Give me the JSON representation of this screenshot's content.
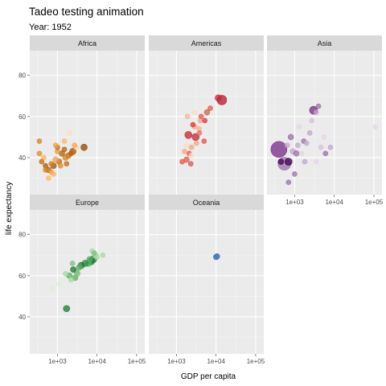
{
  "chart_data": {
    "type": "scatter",
    "title": "Tadeo testing animation",
    "subtitle": "Year: 1952",
    "xlabel": "GDP per capita",
    "ylabel": "life expectancy",
    "xscale": "log10",
    "xlim": [
      200,
      160000
    ],
    "ylim": [
      22,
      92
    ],
    "x_ticks": [
      1000,
      10000,
      100000
    ],
    "x_tick_labels": [
      "1e+03",
      "1e+04",
      "1e+05"
    ],
    "y_ticks": [
      40,
      60,
      80
    ],
    "y_tick_labels": [
      "40",
      "60",
      "80"
    ],
    "grid": true,
    "legend": "none",
    "facets": [
      {
        "name": "Africa",
        "points": [
          {
            "x": 2450,
            "y": 43,
            "s": 4,
            "c": "#a35400"
          },
          {
            "x": 1900,
            "y": 41,
            "s": 3.5,
            "c": "#c46a10"
          },
          {
            "x": 1600,
            "y": 40,
            "s": 3.5,
            "c": "#d97f1e"
          },
          {
            "x": 1300,
            "y": 42,
            "s": 3.5,
            "c": "#b8600a"
          },
          {
            "x": 1100,
            "y": 38,
            "s": 3.5,
            "c": "#c46a10"
          },
          {
            "x": 1000,
            "y": 43,
            "s": 3,
            "c": "#e8953a"
          },
          {
            "x": 900,
            "y": 39,
            "s": 3.5,
            "c": "#f0a04b"
          },
          {
            "x": 800,
            "y": 36,
            "s": 3.5,
            "c": "#9e5205"
          },
          {
            "x": 700,
            "y": 37,
            "s": 3,
            "c": "#d47a19"
          },
          {
            "x": 600,
            "y": 34,
            "s": 3.5,
            "c": "#b55e08"
          },
          {
            "x": 500,
            "y": 36,
            "s": 3,
            "c": "#a85800"
          },
          {
            "x": 450,
            "y": 40,
            "s": 3,
            "c": "#f5b260"
          },
          {
            "x": 400,
            "y": 38,
            "s": 3,
            "c": "#c46a10"
          },
          {
            "x": 350,
            "y": 48,
            "s": 3,
            "c": "#d97f1e"
          },
          {
            "x": 3000,
            "y": 45,
            "s": 3,
            "c": "#fdd49e"
          },
          {
            "x": 2000,
            "y": 52,
            "s": 3,
            "c": "#fee0b6"
          },
          {
            "x": 1500,
            "y": 48,
            "s": 3,
            "c": "#fdb863"
          },
          {
            "x": 4700,
            "y": 45,
            "s": 4,
            "c": "#8c4500"
          },
          {
            "x": 2700,
            "y": 46,
            "s": 3,
            "c": "#f2a65a"
          },
          {
            "x": 1200,
            "y": 36,
            "s": 3,
            "c": "#e08a2a"
          },
          {
            "x": 700,
            "y": 33,
            "s": 3,
            "c": "#f0a04b"
          },
          {
            "x": 350,
            "y": 42,
            "s": 3,
            "c": "#e08a2a"
          },
          {
            "x": 1000,
            "y": 45,
            "s": 3,
            "c": "#c46a10"
          },
          {
            "x": 800,
            "y": 32,
            "s": 3,
            "c": "#f5b260"
          },
          {
            "x": 1500,
            "y": 44,
            "s": 3,
            "c": "#b8600a"
          },
          {
            "x": 600,
            "y": 30,
            "s": 3,
            "c": "#fdb863"
          },
          {
            "x": 500,
            "y": 34,
            "s": 3,
            "c": "#d97f1e"
          },
          {
            "x": 1700,
            "y": 37,
            "s": 3,
            "c": "#c46a10"
          },
          {
            "x": 2200,
            "y": 42,
            "s": 3,
            "c": "#b8600a"
          },
          {
            "x": 900,
            "y": 46,
            "s": 3,
            "c": "#f0a04b"
          }
        ]
      },
      {
        "name": "Americas",
        "points": [
          {
            "x": 13990,
            "y": 68,
            "s": 6,
            "c": "#b2182b"
          },
          {
            "x": 11367,
            "y": 69,
            "s": 4,
            "c": "#c62a3a"
          },
          {
            "x": 5911,
            "y": 62,
            "s": 3.5,
            "c": "#d6604d"
          },
          {
            "x": 4000,
            "y": 58,
            "s": 3,
            "c": "#f4a582"
          },
          {
            "x": 2900,
            "y": 55,
            "s": 3,
            "c": "#f4a582"
          },
          {
            "x": 7144,
            "y": 64,
            "s": 3,
            "c": "#d6604d"
          },
          {
            "x": 3750,
            "y": 54,
            "s": 3,
            "c": "#f6b393"
          },
          {
            "x": 3048,
            "y": 50,
            "s": 4.5,
            "c": "#c0272d"
          },
          {
            "x": 2000,
            "y": 51,
            "s": 4.5,
            "c": "#c0272d"
          },
          {
            "x": 5000,
            "y": 48,
            "s": 3,
            "c": "#e35252"
          },
          {
            "x": 2400,
            "y": 45,
            "s": 3,
            "c": "#f4a582"
          },
          {
            "x": 2100,
            "y": 42,
            "s": 3,
            "c": "#e85a4a"
          },
          {
            "x": 1600,
            "y": 43,
            "s": 3,
            "c": "#f4a582"
          },
          {
            "x": 1400,
            "y": 38,
            "s": 3,
            "c": "#e35a3a"
          },
          {
            "x": 1800,
            "y": 39,
            "s": 3.5,
            "c": "#d6604d"
          },
          {
            "x": 2400,
            "y": 41,
            "s": 3,
            "c": "#fddbc7"
          },
          {
            "x": 3800,
            "y": 52,
            "s": 3,
            "c": "#e86c5a"
          },
          {
            "x": 3200,
            "y": 47,
            "s": 3,
            "c": "#f4a582"
          },
          {
            "x": 2600,
            "y": 56,
            "s": 3,
            "c": "#d9363e"
          },
          {
            "x": 2900,
            "y": 62,
            "s": 3,
            "c": "#fddbc7"
          },
          {
            "x": 1900,
            "y": 60,
            "s": 3,
            "c": "#f8b68f"
          },
          {
            "x": 4200,
            "y": 60,
            "s": 3,
            "c": "#e25848"
          },
          {
            "x": 5200,
            "y": 58,
            "s": 3,
            "c": "#d9363e"
          },
          {
            "x": 1800,
            "y": 46,
            "s": 3,
            "c": "#fddbc7"
          },
          {
            "x": 2300,
            "y": 37,
            "s": 3,
            "c": "#e35252"
          }
        ]
      },
      {
        "name": "Asia",
        "points": [
          {
            "x": 400,
            "y": 44,
            "s": 10,
            "c": "#762a83"
          },
          {
            "x": 550,
            "y": 37,
            "s": 8,
            "c": "#9970ab"
          },
          {
            "x": 700,
            "y": 38,
            "s": 4.5,
            "c": "#40004b"
          },
          {
            "x": 3000,
            "y": 63,
            "s": 5,
            "c": "#762a83"
          },
          {
            "x": 900,
            "y": 43,
            "s": 3.5,
            "c": "#c2a5cf"
          },
          {
            "x": 800,
            "y": 50,
            "s": 3.5,
            "c": "#9970ab"
          },
          {
            "x": 1100,
            "y": 42,
            "s": 3.5,
            "c": "#9970ab"
          },
          {
            "x": 1200,
            "y": 46,
            "s": 3,
            "c": "#c2a5cf"
          },
          {
            "x": 1500,
            "y": 42,
            "s": 3,
            "c": "#e7d4e8"
          },
          {
            "x": 1700,
            "y": 48,
            "s": 3,
            "c": "#9970ab"
          },
          {
            "x": 2000,
            "y": 47,
            "s": 3,
            "c": "#c2a5cf"
          },
          {
            "x": 2400,
            "y": 52,
            "s": 3,
            "c": "#c2a5cf"
          },
          {
            "x": 4000,
            "y": 65,
            "s": 3,
            "c": "#9970ab"
          },
          {
            "x": 3500,
            "y": 62,
            "s": 3,
            "c": "#c2a5cf"
          },
          {
            "x": 5500,
            "y": 50,
            "s": 3,
            "c": "#e7d4e8"
          },
          {
            "x": 6000,
            "y": 42,
            "s": 3,
            "c": "#9970ab"
          },
          {
            "x": 8000,
            "y": 45,
            "s": 3,
            "c": "#c2a5cf"
          },
          {
            "x": 3500,
            "y": 38,
            "s": 3,
            "c": "#e7d4e8"
          },
          {
            "x": 1000,
            "y": 32,
            "s": 3,
            "c": "#9970ab"
          },
          {
            "x": 700,
            "y": 28,
            "s": 3,
            "c": "#9970ab"
          },
          {
            "x": 1300,
            "y": 55,
            "s": 3,
            "c": "#e7d4e8"
          },
          {
            "x": 2700,
            "y": 58,
            "s": 3,
            "c": "#d8bfd8"
          },
          {
            "x": 650,
            "y": 46,
            "s": 3,
            "c": "#c2a5cf"
          },
          {
            "x": 450,
            "y": 38,
            "s": 3.5,
            "c": "#40004b"
          },
          {
            "x": 4600,
            "y": 45,
            "s": 3,
            "c": "#d8bfd8"
          },
          {
            "x": 1800,
            "y": 38,
            "s": 3,
            "c": "#c2a5cf"
          },
          {
            "x": 108382,
            "y": 55,
            "s": 3,
            "c": "#e7d4e8"
          }
        ]
      },
      {
        "name": "Europe",
        "points": [
          {
            "x": 8000,
            "y": 68,
            "s": 4.5,
            "c": "#1b7837"
          },
          {
            "x": 7000,
            "y": 67,
            "s": 4.5,
            "c": "#1b7837"
          },
          {
            "x": 6000,
            "y": 66,
            "s": 4,
            "c": "#5aae61"
          },
          {
            "x": 5000,
            "y": 66,
            "s": 4,
            "c": "#2f8a3e"
          },
          {
            "x": 4000,
            "y": 65,
            "s": 4,
            "c": "#1b7837"
          },
          {
            "x": 3500,
            "y": 64,
            "s": 3.5,
            "c": "#5aae61"
          },
          {
            "x": 3000,
            "y": 62,
            "s": 3.5,
            "c": "#7fbf7b"
          },
          {
            "x": 2500,
            "y": 63,
            "s": 3.5,
            "c": "#1b7837"
          },
          {
            "x": 2000,
            "y": 60,
            "s": 3.5,
            "c": "#5aae61"
          },
          {
            "x": 2200,
            "y": 58,
            "s": 3,
            "c": "#a6dba0"
          },
          {
            "x": 2800,
            "y": 59,
            "s": 3.5,
            "c": "#5aae61"
          },
          {
            "x": 3200,
            "y": 61,
            "s": 3.5,
            "c": "#7fbf7b"
          },
          {
            "x": 1600,
            "y": 61,
            "s": 3,
            "c": "#a6dba0"
          },
          {
            "x": 9000,
            "y": 70,
            "s": 3.5,
            "c": "#a6dba0"
          },
          {
            "x": 10000,
            "y": 69,
            "s": 3,
            "c": "#a6dba0"
          },
          {
            "x": 7500,
            "y": 72,
            "s": 3,
            "c": "#a6dba0"
          },
          {
            "x": 8500,
            "y": 71,
            "s": 3,
            "c": "#7fbf7b"
          },
          {
            "x": 14000,
            "y": 70,
            "s": 3,
            "c": "#a6dba0"
          },
          {
            "x": 6500,
            "y": 68,
            "s": 3.5,
            "c": "#5aae61"
          },
          {
            "x": 2400,
            "y": 66,
            "s": 3,
            "c": "#7fbf7b"
          },
          {
            "x": 1100,
            "y": 56,
            "s": 3,
            "c": "#d9f0d3"
          },
          {
            "x": 700,
            "y": 54,
            "s": 3,
            "c": "#d9f0d3"
          },
          {
            "x": 1700,
            "y": 44,
            "s": 4,
            "c": "#1b7837"
          }
        ]
      },
      {
        "name": "Oceania",
        "points": [
          {
            "x": 10040,
            "y": 69.1,
            "s": 3.5,
            "c": "#4575b4"
          },
          {
            "x": 10557,
            "y": 69.4,
            "s": 3.5,
            "c": "#4575b4"
          }
        ]
      }
    ]
  }
}
